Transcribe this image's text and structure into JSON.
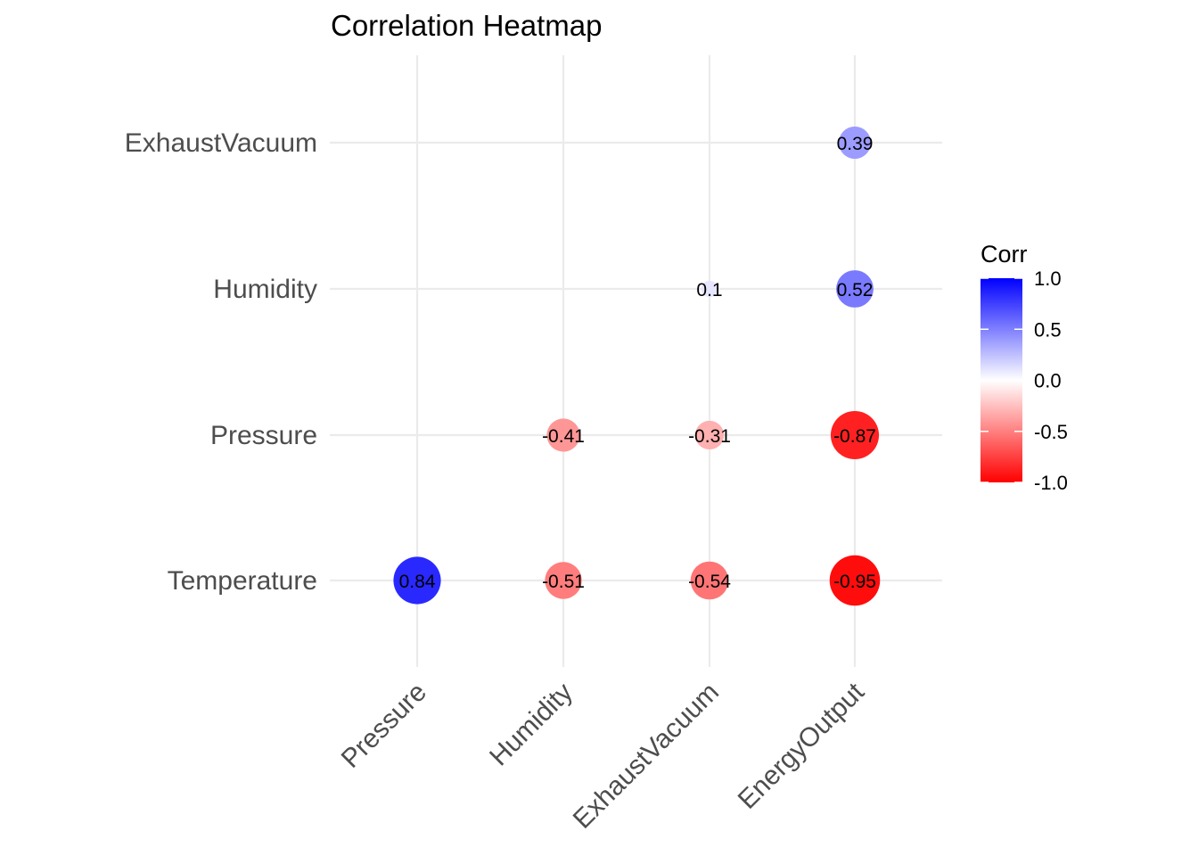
{
  "chart_data": {
    "type": "heatmap",
    "title": "Correlation Heatmap",
    "xlabel": "",
    "ylabel": "",
    "x_categories": [
      "Pressure",
      "Humidity",
      "ExhaustVacuum",
      "EnergyOutput"
    ],
    "y_categories": [
      "Temperature",
      "Pressure",
      "Humidity",
      "ExhaustVacuum"
    ],
    "cells": [
      {
        "x": "Pressure",
        "y": "Temperature",
        "value": 0.84,
        "label": "0.84"
      },
      {
        "x": "Humidity",
        "y": "Temperature",
        "value": -0.51,
        "label": "-0.51"
      },
      {
        "x": "ExhaustVacuum",
        "y": "Temperature",
        "value": -0.54,
        "label": "-0.54"
      },
      {
        "x": "EnergyOutput",
        "y": "Temperature",
        "value": -0.95,
        "label": "-0.95"
      },
      {
        "x": "Humidity",
        "y": "Pressure",
        "value": -0.41,
        "label": "-0.41"
      },
      {
        "x": "ExhaustVacuum",
        "y": "Pressure",
        "value": -0.31,
        "label": "-0.31"
      },
      {
        "x": "EnergyOutput",
        "y": "Pressure",
        "value": -0.87,
        "label": "-0.87"
      },
      {
        "x": "ExhaustVacuum",
        "y": "Humidity",
        "value": 0.1,
        "label": "0.1"
      },
      {
        "x": "EnergyOutput",
        "y": "Humidity",
        "value": 0.52,
        "label": "0.52"
      },
      {
        "x": "EnergyOutput",
        "y": "ExhaustVacuum",
        "value": 0.39,
        "label": "0.39"
      }
    ],
    "size_encodes": "absolute value",
    "legend": {
      "title": "Corr",
      "position": "right",
      "ticks": [
        "1.0",
        "0.5",
        "0.0",
        "-0.5",
        "-1.0"
      ],
      "tick_values": [
        1.0,
        0.5,
        0.0,
        -0.5,
        -1.0
      ],
      "range": [
        -1,
        1
      ]
    },
    "colors": {
      "low": "#ff0000",
      "mid": "#ffffff",
      "high": "#0000ff"
    },
    "grid": true
  }
}
